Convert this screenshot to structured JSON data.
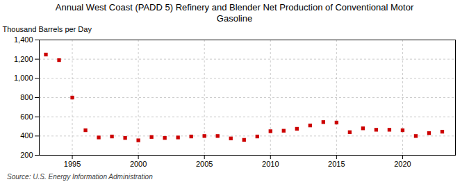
{
  "chart_data": {
    "type": "scatter",
    "title": "Annual West Coast (PADD 5) Refinery and Blender Net Production of Conventional Motor\nGasoline",
    "ylabel": "Thousand Barrels per Day",
    "annotations": [
      "Source: U.S. Energy Information Administration"
    ],
    "x": [
      1993,
      1994,
      1995,
      1996,
      1997,
      1998,
      1999,
      2000,
      2001,
      2002,
      2003,
      2004,
      2005,
      2006,
      2007,
      2008,
      2009,
      2010,
      2011,
      2012,
      2013,
      2014,
      2015,
      2016,
      2017,
      2018,
      2019,
      2020,
      2021,
      2022,
      2023
    ],
    "values": [
      1248,
      1190,
      800,
      460,
      385,
      395,
      380,
      355,
      390,
      380,
      385,
      395,
      400,
      400,
      375,
      360,
      395,
      450,
      455,
      475,
      510,
      545,
      540,
      440,
      480,
      465,
      465,
      460,
      400,
      430,
      445
    ],
    "color": "#cc0000",
    "marker": "square",
    "xlim": [
      1992.5,
      2024
    ],
    "xticks": [
      1995,
      2000,
      2005,
      2010,
      2015,
      2020
    ],
    "ylim": [
      200,
      1400
    ],
    "yticks": [
      200,
      400,
      600,
      800,
      {
        "value": 1000,
        "label": "1,000"
      },
      {
        "value": 1200,
        "label": "1,200"
      },
      {
        "value": 1400,
        "label": "1,400"
      }
    ],
    "grid": true
  }
}
